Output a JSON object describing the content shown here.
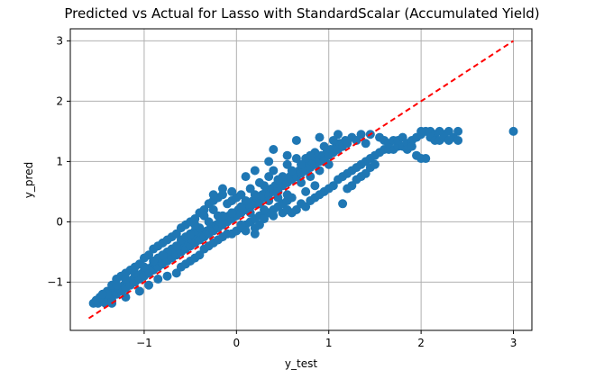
{
  "chart_data": {
    "type": "scatter",
    "title": "Predicted vs Actual for Lasso with StandardScalar (Accumulated Yield)",
    "xlabel": "y_test",
    "ylabel": "y_pred",
    "xlim": [
      -1.8,
      3.2
    ],
    "ylim": [
      -1.8,
      3.2
    ],
    "xticks": [
      -1,
      0,
      1,
      2,
      3
    ],
    "yticks": [
      -1,
      0,
      1,
      2,
      3
    ],
    "xtick_labels": [
      "−1",
      "0",
      "1",
      "2",
      "3"
    ],
    "ytick_labels": [
      "−1",
      "0",
      "1",
      "2",
      "3"
    ],
    "grid": true,
    "colors": {
      "points": "#1f77b4",
      "reference_line": "#ff0000",
      "grid": "#b0b0b0"
    },
    "reference_line": {
      "style": "dashed",
      "x": [
        -1.6,
        3.0
      ],
      "y": [
        -1.6,
        3.0
      ]
    },
    "points": [
      [
        -1.55,
        -1.35
      ],
      [
        -1.5,
        -1.35
      ],
      [
        -1.45,
        -1.3
      ],
      [
        -1.42,
        -1.35
      ],
      [
        -1.4,
        -1.25
      ],
      [
        -1.38,
        -1.2
      ],
      [
        -1.35,
        -1.3
      ],
      [
        -1.32,
        -1.15
      ],
      [
        -1.3,
        -1.2
      ],
      [
        -1.28,
        -1.1
      ],
      [
        -1.25,
        -1.15
      ],
      [
        -1.22,
        -1.05
      ],
      [
        -1.2,
        -1.1
      ],
      [
        -1.18,
        -1.0
      ],
      [
        -1.15,
        -1.05
      ],
      [
        -1.12,
        -0.95
      ],
      [
        -1.1,
        -1.0
      ],
      [
        -1.08,
        -0.9
      ],
      [
        -1.05,
        -0.95
      ],
      [
        -1.02,
        -0.85
      ],
      [
        -1.0,
        -0.9
      ],
      [
        -0.98,
        -0.8
      ],
      [
        -0.95,
        -0.85
      ],
      [
        -0.92,
        -0.75
      ],
      [
        -0.9,
        -0.8
      ],
      [
        -0.88,
        -0.7
      ],
      [
        -0.85,
        -0.75
      ],
      [
        -0.82,
        -0.65
      ],
      [
        -0.8,
        -0.7
      ],
      [
        -0.78,
        -0.6
      ],
      [
        -0.75,
        -0.65
      ],
      [
        -0.72,
        -0.55
      ],
      [
        -0.7,
        -0.6
      ],
      [
        -0.68,
        -0.5
      ],
      [
        -0.65,
        -0.55
      ],
      [
        -0.62,
        -0.45
      ],
      [
        -0.6,
        -0.5
      ],
      [
        -0.58,
        -0.4
      ],
      [
        -0.55,
        -0.45
      ],
      [
        -0.52,
        -0.35
      ],
      [
        -0.5,
        -0.4
      ],
      [
        -0.48,
        -0.3
      ],
      [
        -0.45,
        -0.35
      ],
      [
        -0.42,
        -0.25
      ],
      [
        -0.4,
        -0.3
      ],
      [
        -0.38,
        -0.2
      ],
      [
        -0.35,
        -0.25
      ],
      [
        -0.32,
        -0.15
      ],
      [
        -0.3,
        -0.2
      ],
      [
        -0.28,
        -0.1
      ],
      [
        -0.25,
        -0.15
      ],
      [
        -0.22,
        -0.05
      ],
      [
        -0.2,
        -0.1
      ],
      [
        -0.18,
        0.0
      ],
      [
        -0.15,
        -0.05
      ],
      [
        -0.12,
        0.05
      ],
      [
        -0.1,
        0.0
      ],
      [
        -0.08,
        0.1
      ],
      [
        -0.05,
        0.05
      ],
      [
        -0.02,
        0.15
      ],
      [
        0.0,
        0.1
      ],
      [
        0.02,
        0.2
      ],
      [
        0.05,
        0.15
      ],
      [
        0.08,
        0.25
      ],
      [
        0.1,
        0.2
      ],
      [
        0.12,
        0.3
      ],
      [
        0.15,
        0.25
      ],
      [
        0.18,
        0.35
      ],
      [
        0.2,
        0.3
      ],
      [
        0.22,
        0.4
      ],
      [
        0.25,
        0.35
      ],
      [
        0.28,
        0.45
      ],
      [
        0.3,
        0.4
      ],
      [
        0.32,
        0.5
      ],
      [
        0.35,
        0.45
      ],
      [
        0.38,
        0.55
      ],
      [
        0.4,
        0.5
      ],
      [
        0.42,
        0.6
      ],
      [
        0.45,
        0.55
      ],
      [
        0.48,
        0.65
      ],
      [
        0.5,
        0.6
      ],
      [
        0.52,
        0.7
      ],
      [
        0.55,
        0.65
      ],
      [
        0.58,
        0.75
      ],
      [
        0.6,
        0.7
      ],
      [
        0.62,
        0.8
      ],
      [
        0.65,
        0.75
      ],
      [
        0.68,
        0.85
      ],
      [
        0.7,
        0.8
      ],
      [
        0.72,
        0.9
      ],
      [
        0.75,
        0.85
      ],
      [
        0.78,
        0.95
      ],
      [
        0.8,
        0.9
      ],
      [
        0.82,
        1.0
      ],
      [
        0.85,
        0.95
      ],
      [
        0.88,
        1.05
      ],
      [
        0.9,
        1.0
      ],
      [
        0.92,
        1.1
      ],
      [
        0.95,
        1.05
      ],
      [
        0.98,
        1.15
      ],
      [
        1.0,
        1.1
      ],
      [
        1.02,
        1.2
      ],
      [
        1.05,
        1.15
      ],
      [
        1.08,
        1.25
      ],
      [
        1.1,
        1.2
      ],
      [
        1.12,
        1.3
      ],
      [
        1.15,
        1.25
      ],
      [
        1.18,
        1.35
      ],
      [
        1.2,
        1.3
      ],
      [
        1.25,
        1.4
      ],
      [
        1.3,
        1.35
      ],
      [
        1.35,
        1.45
      ],
      [
        -1.52,
        -1.3
      ],
      [
        -1.48,
        -1.25
      ],
      [
        -1.4,
        -1.15
      ],
      [
        -1.35,
        -1.05
      ],
      [
        -1.3,
        -0.95
      ],
      [
        -1.25,
        -0.9
      ],
      [
        -1.2,
        -0.85
      ],
      [
        -1.15,
        -0.8
      ],
      [
        -1.1,
        -0.75
      ],
      [
        -1.05,
        -0.7
      ],
      [
        -1.0,
        -0.6
      ],
      [
        -0.95,
        -0.55
      ],
      [
        -0.9,
        -0.45
      ],
      [
        -0.85,
        -0.4
      ],
      [
        -0.8,
        -0.35
      ],
      [
        -0.75,
        -0.3
      ],
      [
        -0.7,
        -0.25
      ],
      [
        -0.65,
        -0.2
      ],
      [
        -0.6,
        -0.1
      ],
      [
        -0.55,
        -0.05
      ],
      [
        -0.5,
        0.0
      ],
      [
        -0.45,
        0.05
      ],
      [
        -0.4,
        0.15
      ],
      [
        -0.35,
        0.2
      ],
      [
        -0.3,
        0.3
      ],
      [
        -0.25,
        0.35
      ],
      [
        -0.2,
        0.4
      ],
      [
        -0.15,
        0.45
      ],
      [
        -0.1,
        0.3
      ],
      [
        -0.05,
        0.35
      ],
      [
        0.0,
        0.4
      ],
      [
        0.05,
        0.45
      ],
      [
        -1.35,
        -1.35
      ],
      [
        -1.2,
        -1.25
      ],
      [
        -1.05,
        -1.15
      ],
      [
        -0.95,
        -1.05
      ],
      [
        -0.85,
        -0.95
      ],
      [
        -0.75,
        -0.9
      ],
      [
        -0.65,
        -0.85
      ],
      [
        -0.6,
        -0.75
      ],
      [
        -0.55,
        -0.7
      ],
      [
        -0.5,
        -0.65
      ],
      [
        -0.45,
        -0.6
      ],
      [
        -0.4,
        -0.55
      ],
      [
        -0.35,
        -0.45
      ],
      [
        -0.3,
        -0.4
      ],
      [
        -0.25,
        -0.35
      ],
      [
        -0.2,
        -0.3
      ],
      [
        -0.15,
        -0.25
      ],
      [
        -0.1,
        -0.2
      ],
      [
        -0.05,
        -0.2
      ],
      [
        0.0,
        -0.15
      ],
      [
        0.05,
        -0.1
      ],
      [
        0.1,
        -0.05
      ],
      [
        0.15,
        0.0
      ],
      [
        0.2,
        0.05
      ],
      [
        0.25,
        0.1
      ],
      [
        0.3,
        0.1
      ],
      [
        0.35,
        0.15
      ],
      [
        0.4,
        0.2
      ],
      [
        0.45,
        0.25
      ],
      [
        0.5,
        0.3
      ],
      [
        0.55,
        0.35
      ],
      [
        0.6,
        0.4
      ],
      [
        -0.85,
        -0.6
      ],
      [
        -0.7,
        -0.45
      ],
      [
        -0.6,
        -0.3
      ],
      [
        -0.55,
        -0.25
      ],
      [
        -0.45,
        -0.15
      ],
      [
        -0.4,
        -0.1
      ],
      [
        -0.3,
        0.0
      ],
      [
        -0.2,
        0.1
      ],
      [
        0.1,
        -0.15
      ],
      [
        0.2,
        -0.2
      ],
      [
        0.3,
        0.05
      ],
      [
        0.4,
        0.1
      ],
      [
        0.5,
        0.15
      ],
      [
        0.55,
        0.2
      ],
      [
        0.6,
        0.15
      ],
      [
        0.65,
        0.2
      ],
      [
        0.7,
        0.3
      ],
      [
        0.75,
        0.25
      ],
      [
        0.8,
        0.35
      ],
      [
        0.85,
        0.4
      ],
      [
        0.9,
        0.45
      ],
      [
        0.95,
        0.5
      ],
      [
        1.0,
        0.55
      ],
      [
        1.05,
        0.6
      ],
      [
        1.1,
        0.7
      ],
      [
        1.15,
        0.75
      ],
      [
        1.2,
        0.8
      ],
      [
        1.25,
        0.85
      ],
      [
        1.3,
        0.9
      ],
      [
        1.35,
        0.95
      ],
      [
        1.4,
        1.0
      ],
      [
        1.45,
        1.05
      ],
      [
        1.5,
        1.1
      ],
      [
        1.55,
        1.15
      ],
      [
        1.6,
        1.2
      ],
      [
        1.65,
        1.2
      ],
      [
        1.7,
        1.2
      ],
      [
        1.75,
        1.25
      ],
      [
        1.8,
        1.25
      ],
      [
        1.85,
        1.3
      ],
      [
        1.9,
        1.35
      ],
      [
        1.95,
        1.4
      ],
      [
        2.0,
        1.45
      ],
      [
        2.05,
        1.5
      ],
      [
        2.1,
        1.5
      ],
      [
        2.15,
        1.45
      ],
      [
        2.2,
        1.5
      ],
      [
        2.25,
        1.45
      ],
      [
        2.3,
        1.5
      ],
      [
        2.35,
        1.4
      ],
      [
        2.4,
        1.5
      ],
      [
        1.45,
        1.45
      ],
      [
        1.55,
        1.4
      ],
      [
        1.6,
        1.35
      ],
      [
        1.65,
        1.3
      ],
      [
        1.7,
        1.35
      ],
      [
        1.75,
        1.35
      ],
      [
        1.8,
        1.4
      ],
      [
        1.85,
        1.2
      ],
      [
        1.9,
        1.25
      ],
      [
        1.95,
        1.1
      ],
      [
        2.0,
        1.05
      ],
      [
        2.05,
        1.05
      ],
      [
        2.0,
        1.5
      ],
      [
        2.1,
        1.4
      ],
      [
        2.15,
        1.35
      ],
      [
        2.2,
        1.35
      ],
      [
        2.25,
        1.4
      ],
      [
        2.3,
        1.35
      ],
      [
        2.4,
        1.35
      ],
      [
        3.0,
        1.5
      ],
      [
        1.4,
        0.8
      ],
      [
        1.3,
        0.7
      ],
      [
        1.25,
        0.6
      ],
      [
        1.15,
        0.3
      ],
      [
        1.2,
        0.55
      ],
      [
        1.35,
        0.75
      ],
      [
        1.45,
        0.9
      ],
      [
        1.5,
        0.95
      ],
      [
        1.4,
        1.3
      ],
      [
        0.65,
        1.35
      ],
      [
        0.9,
        1.4
      ],
      [
        1.1,
        1.45
      ],
      [
        0.4,
        1.2
      ],
      [
        0.55,
        1.1
      ],
      [
        0.35,
        1.0
      ],
      [
        0.2,
        0.85
      ],
      [
        0.1,
        0.75
      ],
      [
        0.75,
        1.05
      ],
      [
        0.85,
        1.15
      ],
      [
        0.95,
        1.25
      ],
      [
        1.05,
        1.35
      ],
      [
        0.7,
        0.95
      ],
      [
        0.6,
        0.85
      ],
      [
        0.5,
        0.75
      ],
      [
        0.45,
        0.7
      ],
      [
        0.3,
        0.6
      ],
      [
        -0.05,
        0.5
      ],
      [
        -0.15,
        0.55
      ],
      [
        -0.25,
        0.45
      ],
      [
        0.15,
        0.55
      ],
      [
        0.25,
        0.65
      ],
      [
        0.35,
        0.75
      ],
      [
        0.4,
        0.85
      ],
      [
        0.55,
        0.95
      ],
      [
        0.65,
        1.05
      ],
      [
        0.8,
        1.1
      ],
      [
        0.95,
        1.0
      ],
      [
        1.0,
        0.95
      ],
      [
        0.9,
        0.85
      ],
      [
        0.8,
        0.75
      ],
      [
        0.7,
        0.65
      ],
      [
        0.75,
        0.5
      ],
      [
        0.85,
        0.6
      ],
      [
        0.55,
        0.45
      ],
      [
        0.45,
        0.5
      ],
      [
        0.35,
        0.35
      ],
      [
        0.25,
        0.3
      ],
      [
        0.15,
        0.25
      ],
      [
        0.05,
        0.25
      ],
      [
        -0.05,
        0.15
      ],
      [
        -0.15,
        0.1
      ],
      [
        -0.25,
        0.2
      ],
      [
        -0.35,
        0.1
      ],
      [
        -0.45,
        -0.05
      ],
      [
        -0.5,
        -0.2
      ],
      [
        -0.65,
        -0.4
      ],
      [
        -0.75,
        -0.5
      ],
      [
        -0.8,
        -0.55
      ],
      [
        -0.9,
        -0.65
      ],
      [
        -1.0,
        -0.75
      ],
      [
        -1.1,
        -0.85
      ],
      [
        -1.2,
        -0.95
      ],
      [
        -1.3,
        -1.05
      ],
      [
        -1.4,
        -1.2
      ],
      [
        -1.45,
        -1.2
      ],
      [
        0.2,
        -0.1
      ],
      [
        0.15,
        0.15
      ],
      [
        0.25,
        -0.05
      ],
      [
        0.05,
        -0.05
      ],
      [
        0.1,
        0.35
      ],
      [
        0.2,
        0.45
      ],
      [
        0.3,
        0.2
      ],
      [
        0.45,
        0.4
      ]
    ]
  }
}
